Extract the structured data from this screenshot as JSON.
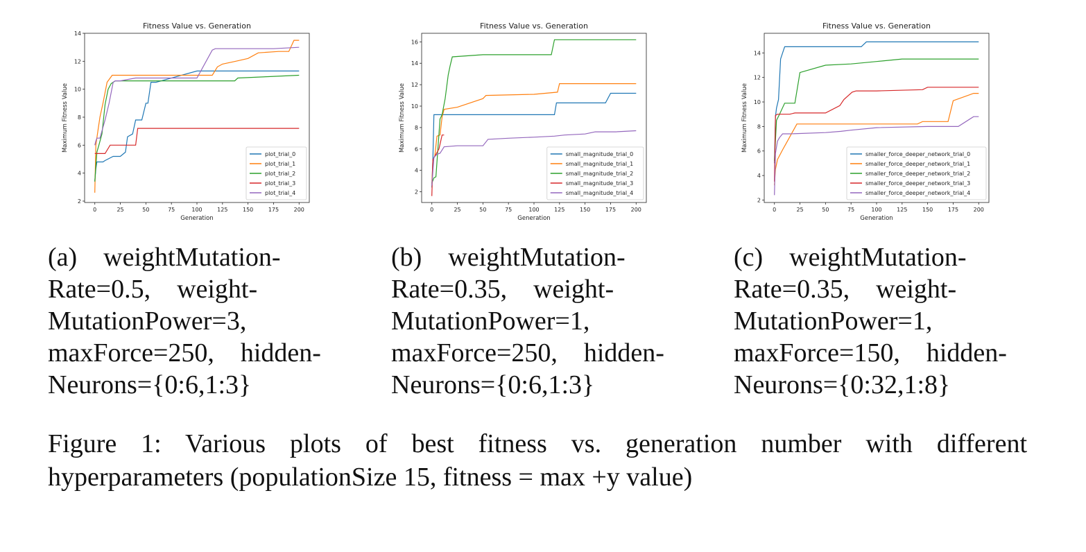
{
  "chart_data": [
    {
      "type": "line",
      "title": "Fitness Value vs. Generation",
      "xlabel": "Generation",
      "ylabel": "Maximum Fitness Value",
      "xlim": [
        -10,
        210
      ],
      "ylim": [
        1.9,
        14.0
      ],
      "xticks": [
        0,
        25,
        50,
        75,
        100,
        125,
        150,
        175,
        200
      ],
      "yticks": [
        2,
        4,
        6,
        8,
        10,
        12,
        14
      ],
      "legend": "bottom-right",
      "grid": false,
      "series": [
        {
          "name": "plot_trial_0",
          "color": "#1f77b4",
          "x": [
            0,
            1,
            2,
            8,
            10,
            18,
            25,
            30,
            32,
            37,
            40,
            46,
            50,
            52,
            55,
            60,
            65,
            100,
            110,
            150,
            200
          ],
          "y": [
            3.4,
            4.3,
            4.8,
            4.8,
            4.9,
            5.2,
            5.2,
            5.5,
            6.6,
            6.8,
            7.8,
            7.8,
            9.0,
            9.0,
            10.5,
            10.5,
            10.6,
            11.3,
            11.3,
            11.3,
            11.3
          ]
        },
        {
          "name": "plot_trial_1",
          "color": "#ff7f0e",
          "x": [
            0,
            1,
            3,
            5,
            8,
            12,
            17,
            50,
            100,
            115,
            120,
            125,
            138,
            150,
            160,
            180,
            190,
            195,
            200
          ],
          "y": [
            2.6,
            6.0,
            7.0,
            8.0,
            9.0,
            10.5,
            11.0,
            11.0,
            11.0,
            11.0,
            11.6,
            11.8,
            12.0,
            12.2,
            12.6,
            12.7,
            12.7,
            13.5,
            13.5
          ]
        },
        {
          "name": "plot_trial_2",
          "color": "#2ca02c",
          "x": [
            0,
            2,
            4,
            7,
            10,
            13,
            16,
            20,
            40,
            60,
            100,
            137,
            140,
            170,
            200
          ],
          "y": [
            3.4,
            5.5,
            6.0,
            6.8,
            8.9,
            10.0,
            10.4,
            10.6,
            10.6,
            10.6,
            10.6,
            10.6,
            10.8,
            10.9,
            11.0
          ]
        },
        {
          "name": "plot_trial_3",
          "color": "#d62728",
          "x": [
            0,
            5,
            10,
            15,
            20,
            30,
            35,
            40,
            42,
            60,
            100,
            200
          ],
          "y": [
            5.4,
            5.4,
            5.4,
            6.0,
            6.0,
            6.0,
            6.0,
            6.0,
            7.2,
            7.2,
            7.2,
            7.2
          ]
        },
        {
          "name": "plot_trial_4",
          "color": "#9467bd",
          "x": [
            0,
            1,
            2,
            5,
            10,
            14,
            18,
            20,
            25,
            40,
            75,
            100,
            115,
            118,
            150,
            175,
            200
          ],
          "y": [
            6.0,
            6.3,
            6.5,
            6.5,
            7.8,
            9.0,
            10.5,
            10.6,
            10.6,
            10.8,
            10.8,
            10.8,
            12.8,
            12.9,
            12.9,
            12.9,
            13.0
          ]
        }
      ]
    },
    {
      "type": "line",
      "title": "Fitness Value vs. Generation",
      "xlabel": "Generation",
      "ylabel": "Maximum Fitness Value",
      "xlim": [
        -10,
        210
      ],
      "ylim": [
        1.0,
        16.8
      ],
      "xticks": [
        0,
        25,
        50,
        75,
        100,
        125,
        150,
        175,
        200
      ],
      "yticks": [
        2,
        4,
        6,
        8,
        10,
        12,
        14,
        16
      ],
      "legend": "bottom-right",
      "grid": false,
      "series": [
        {
          "name": "small_magnitude_trial_0",
          "color": "#1f77b4",
          "x": [
            0,
            1,
            2,
            50,
            100,
            120,
            122,
            170,
            175,
            200
          ],
          "y": [
            2.4,
            5.0,
            9.2,
            9.2,
            9.2,
            9.2,
            10.3,
            10.3,
            11.2,
            11.2
          ]
        },
        {
          "name": "small_magnitude_trial_1",
          "color": "#ff7f0e",
          "x": [
            0,
            1,
            3,
            5,
            8,
            10,
            12,
            25,
            50,
            53,
            100,
            123,
            125,
            200
          ],
          "y": [
            2.7,
            4.9,
            5.4,
            7.2,
            7.3,
            9.0,
            9.7,
            9.9,
            10.7,
            11.0,
            11.1,
            11.3,
            12.1,
            12.1
          ]
        },
        {
          "name": "small_magnitude_trial_2",
          "color": "#2ca02c",
          "x": [
            0,
            2,
            4,
            8,
            10,
            13,
            16,
            18,
            20,
            50,
            100,
            117,
            120,
            200
          ],
          "y": [
            2.8,
            3.3,
            3.4,
            8.8,
            9.2,
            10.7,
            12.9,
            13.8,
            14.6,
            14.8,
            14.8,
            14.8,
            16.2,
            16.2
          ]
        },
        {
          "name": "small_magnitude_trial_3",
          "color": "#d62728",
          "x": [
            0,
            1,
            4,
            7,
            10,
            12
          ],
          "y": [
            1.6,
            5.0,
            5.5,
            6.0,
            7.3,
            7.3
          ]
        },
        {
          "name": "small_magnitude_trial_4",
          "color": "#9467bd",
          "x": [
            0,
            2,
            5,
            8,
            12,
            25,
            50,
            55,
            75,
            100,
            120,
            130,
            150,
            160,
            180,
            200
          ],
          "y": [
            2.6,
            5.2,
            5.5,
            5.6,
            6.2,
            6.3,
            6.3,
            6.9,
            7.0,
            7.1,
            7.2,
            7.3,
            7.4,
            7.6,
            7.6,
            7.7
          ]
        }
      ]
    },
    {
      "type": "line",
      "title": "Fitness Value vs. Generation",
      "xlabel": "Generation",
      "ylabel": "Maximum Fitness Value",
      "xlim": [
        -10,
        210
      ],
      "ylim": [
        1.8,
        15.6
      ],
      "xticks": [
        0,
        25,
        50,
        75,
        100,
        125,
        150,
        175,
        200
      ],
      "yticks": [
        2,
        4,
        6,
        8,
        10,
        12,
        14
      ],
      "legend": "bottom-right",
      "grid": false,
      "series": [
        {
          "name": "smaller_force_deeper_network_trial_0",
          "color": "#1f77b4",
          "x": [
            0,
            1,
            2,
            4,
            6,
            8,
            10,
            50,
            85,
            90,
            200
          ],
          "y": [
            5.0,
            8.8,
            9.5,
            10.2,
            13.5,
            14.0,
            14.5,
            14.5,
            14.5,
            14.9,
            14.9
          ]
        },
        {
          "name": "smaller_force_deeper_network_trial_1",
          "color": "#ff7f0e",
          "x": [
            0,
            1,
            3,
            8,
            12,
            22,
            50,
            100,
            140,
            145,
            170,
            175,
            195,
            200
          ],
          "y": [
            3.2,
            4.5,
            5.3,
            6.1,
            6.7,
            8.2,
            8.2,
            8.2,
            8.2,
            8.4,
            8.4,
            10.1,
            10.7,
            10.7
          ]
        },
        {
          "name": "smaller_force_deeper_network_trial_2",
          "color": "#2ca02c",
          "x": [
            0,
            2,
            5,
            10,
            15,
            20,
            25,
            50,
            75,
            100,
            125,
            200
          ],
          "y": [
            5.2,
            8.5,
            9.0,
            9.9,
            9.9,
            9.9,
            12.4,
            13.0,
            13.1,
            13.3,
            13.5,
            13.5
          ]
        },
        {
          "name": "smaller_force_deeper_network_trial_3",
          "color": "#d62728",
          "x": [
            0,
            1,
            3,
            10,
            15,
            20,
            50,
            64,
            68,
            76,
            80,
            100,
            145,
            150,
            200
          ],
          "y": [
            3.5,
            8.9,
            9.0,
            9.0,
            9.0,
            9.1,
            9.1,
            9.7,
            10.2,
            10.8,
            10.9,
            10.9,
            11.0,
            11.2,
            11.2
          ]
        },
        {
          "name": "smaller_force_deeper_network_trial_4",
          "color": "#9467bd",
          "x": [
            0,
            1,
            3,
            5,
            8,
            15,
            50,
            65,
            75,
            100,
            150,
            175,
            180,
            195,
            200
          ],
          "y": [
            2.4,
            5.8,
            6.8,
            7.1,
            7.4,
            7.4,
            7.5,
            7.6,
            7.7,
            7.9,
            8.0,
            8.0,
            8.0,
            8.8,
            8.8
          ]
        }
      ]
    }
  ],
  "captions": [
    {
      "lines": [
        "(a) weightMutation-",
        "Rate=0.5, weight-",
        "MutationPower=3,",
        "maxForce=250, hidden-",
        "Neurons={0:6,1:3}"
      ]
    },
    {
      "lines": [
        "(b) weightMutation-",
        "Rate=0.35, weight-",
        "MutationPower=1,",
        "maxForce=250, hidden-",
        "Neurons={0:6,1:3}"
      ]
    },
    {
      "lines": [
        "(c) weightMutation-",
        "Rate=0.35, weight-",
        "MutationPower=1,",
        "maxForce=150, hidden-",
        "Neurons={0:32,1:8}"
      ]
    }
  ],
  "figure_caption": {
    "lines": [
      "Figure 1: Various plots of best fitness vs. generation number with different",
      "hyperparameters (populationSize 15, fitness = max +y value)"
    ]
  }
}
